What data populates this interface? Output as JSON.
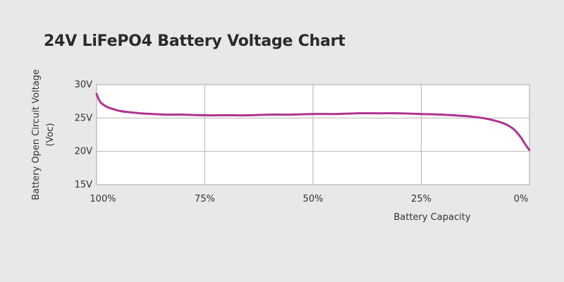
{
  "chart_data": {
    "type": "line",
    "title": "24V LiFePO4 Battery Voltage Chart",
    "xlabel": "Battery Capacity",
    "ylabel": "Battery Open Circuit Voltage",
    "ylabel_unit": "(Voc)",
    "x_reversed": true,
    "xlim": [
      100,
      0
    ],
    "ylim": [
      15,
      30
    ],
    "grid": true,
    "x_ticks": [
      {
        "value": 100,
        "label": "100%"
      },
      {
        "value": 75,
        "label": "75%"
      },
      {
        "value": 50,
        "label": "50%"
      },
      {
        "value": 25,
        "label": "25%"
      },
      {
        "value": 0,
        "label": "0%"
      }
    ],
    "y_ticks": [
      {
        "value": 30,
        "label": "30V"
      },
      {
        "value": 25,
        "label": "25V"
      },
      {
        "value": 20,
        "label": "20V"
      },
      {
        "value": 15,
        "label": "15V"
      }
    ],
    "series": [
      {
        "color": "#b0338f",
        "x": [
          100,
          99.5,
          99,
          98,
          97,
          96,
          95,
          93,
          90,
          87,
          84,
          80,
          75,
          70,
          65,
          60,
          55,
          50,
          45,
          40,
          35,
          30,
          25,
          20,
          15,
          12,
          10,
          8,
          6,
          5,
          4,
          3,
          2,
          1.5,
          1,
          0.5,
          0
        ],
        "y": [
          28.6,
          27.8,
          27.3,
          26.8,
          26.5,
          26.3,
          26.1,
          25.9,
          25.7,
          25.6,
          25.5,
          25.5,
          25.4,
          25.4,
          25.4,
          25.5,
          25.5,
          25.6,
          25.6,
          25.7,
          25.7,
          25.7,
          25.6,
          25.5,
          25.3,
          25.1,
          24.9,
          24.6,
          24.2,
          23.9,
          23.5,
          22.9,
          22.1,
          21.6,
          21.1,
          20.6,
          20.2
        ]
      }
    ]
  }
}
